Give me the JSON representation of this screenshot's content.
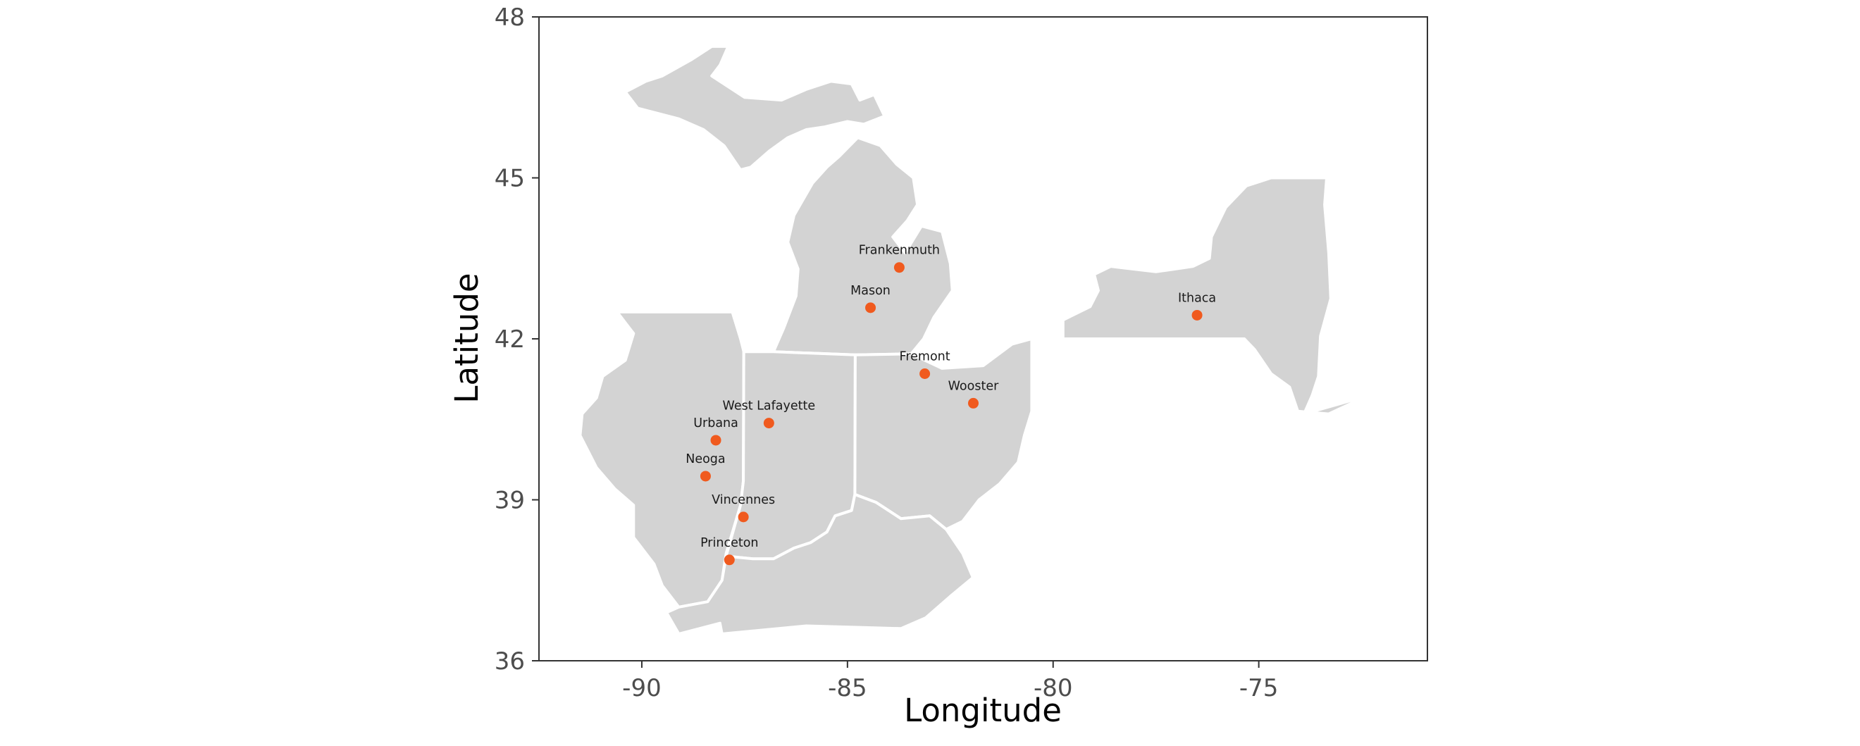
{
  "axes": {
    "x_title": "Longitude",
    "y_title": "Latitude",
    "x_ticks": [
      -90,
      -85,
      -80,
      -75
    ],
    "y_ticks": [
      36,
      39,
      42,
      45,
      48
    ],
    "x_range": [
      -92.5,
      -70.9
    ],
    "y_range": [
      36.0,
      48.0
    ]
  },
  "point_color": "#f05a1e",
  "region_fill": "#d3d3d3",
  "states": [
    {
      "id": "michigan-upper",
      "points": [
        [
          -90.4,
          46.6
        ],
        [
          -89.9,
          46.8
        ],
        [
          -89.5,
          46.9
        ],
        [
          -88.8,
          47.2
        ],
        [
          -88.3,
          47.45
        ],
        [
          -87.9,
          47.45
        ],
        [
          -88.1,
          47.1
        ],
        [
          -88.3,
          46.9
        ],
        [
          -87.5,
          46.5
        ],
        [
          -86.6,
          46.45
        ],
        [
          -86.0,
          46.65
        ],
        [
          -85.4,
          46.8
        ],
        [
          -84.9,
          46.75
        ],
        [
          -84.7,
          46.45
        ],
        [
          -84.35,
          46.55
        ],
        [
          -84.1,
          46.15
        ],
        [
          -84.6,
          46.0
        ],
        [
          -85.0,
          46.05
        ],
        [
          -85.55,
          45.95
        ],
        [
          -86.0,
          45.9
        ],
        [
          -86.45,
          45.75
        ],
        [
          -86.9,
          45.5
        ],
        [
          -87.35,
          45.2
        ],
        [
          -87.6,
          45.15
        ],
        [
          -88.0,
          45.6
        ],
        [
          -88.5,
          45.9
        ],
        [
          -89.1,
          46.1
        ],
        [
          -90.1,
          46.3
        ]
      ]
    },
    {
      "id": "michigan-lower",
      "points": [
        [
          -86.8,
          41.76
        ],
        [
          -86.55,
          42.2
        ],
        [
          -86.25,
          42.8
        ],
        [
          -86.2,
          43.3
        ],
        [
          -86.45,
          43.8
        ],
        [
          -86.3,
          44.3
        ],
        [
          -85.85,
          44.9
        ],
        [
          -85.5,
          45.2
        ],
        [
          -85.2,
          45.4
        ],
        [
          -84.75,
          45.75
        ],
        [
          -84.2,
          45.6
        ],
        [
          -83.8,
          45.25
        ],
        [
          -83.4,
          45.0
        ],
        [
          -83.3,
          44.5
        ],
        [
          -83.55,
          44.2
        ],
        [
          -83.9,
          43.9
        ],
        [
          -83.6,
          43.6
        ],
        [
          -83.2,
          44.1
        ],
        [
          -82.7,
          44.0
        ],
        [
          -82.5,
          43.4
        ],
        [
          -82.45,
          42.9
        ],
        [
          -82.9,
          42.4
        ],
        [
          -83.15,
          42.0
        ],
        [
          -83.45,
          41.72
        ],
        [
          -84.81,
          41.7
        ]
      ]
    },
    {
      "id": "illinois",
      "points": [
        [
          -90.6,
          42.5
        ],
        [
          -87.8,
          42.5
        ],
        [
          -87.6,
          42.0
        ],
        [
          -87.52,
          41.76
        ],
        [
          -87.53,
          39.35
        ],
        [
          -87.6,
          38.9
        ],
        [
          -87.95,
          38.0
        ],
        [
          -88.05,
          37.5
        ],
        [
          -88.4,
          37.1
        ],
        [
          -89.1,
          37.0
        ],
        [
          -89.5,
          37.4
        ],
        [
          -89.7,
          37.8
        ],
        [
          -90.2,
          38.3
        ],
        [
          -90.2,
          38.9
        ],
        [
          -90.65,
          39.2
        ],
        [
          -91.1,
          39.6
        ],
        [
          -91.5,
          40.2
        ],
        [
          -91.45,
          40.6
        ],
        [
          -91.1,
          40.9
        ],
        [
          -90.95,
          41.3
        ],
        [
          -90.4,
          41.6
        ],
        [
          -90.2,
          42.1
        ]
      ]
    },
    {
      "id": "indiana",
      "points": [
        [
          -87.52,
          41.76
        ],
        [
          -86.8,
          41.76
        ],
        [
          -84.81,
          41.7
        ],
        [
          -84.82,
          39.1
        ],
        [
          -84.9,
          38.8
        ],
        [
          -85.3,
          38.7
        ],
        [
          -85.5,
          38.4
        ],
        [
          -85.9,
          38.2
        ],
        [
          -86.3,
          38.1
        ],
        [
          -86.8,
          37.9
        ],
        [
          -87.3,
          37.9
        ],
        [
          -87.95,
          37.95
        ],
        [
          -87.6,
          38.9
        ],
        [
          -87.53,
          39.35
        ]
      ]
    },
    {
      "id": "ohio",
      "points": [
        [
          -84.81,
          41.7
        ],
        [
          -83.45,
          41.72
        ],
        [
          -82.7,
          41.45
        ],
        [
          -81.7,
          41.5
        ],
        [
          -81.0,
          41.9
        ],
        [
          -80.52,
          42.0
        ],
        [
          -80.52,
          40.65
        ],
        [
          -80.7,
          40.2
        ],
        [
          -80.85,
          39.7
        ],
        [
          -81.3,
          39.3
        ],
        [
          -81.8,
          39.0
        ],
        [
          -82.2,
          38.6
        ],
        [
          -82.6,
          38.45
        ],
        [
          -83.0,
          38.7
        ],
        [
          -83.7,
          38.65
        ],
        [
          -84.3,
          38.95
        ],
        [
          -84.82,
          39.1
        ]
      ]
    },
    {
      "id": "kentucky",
      "points": [
        [
          -84.82,
          39.1
        ],
        [
          -84.3,
          38.95
        ],
        [
          -83.7,
          38.65
        ],
        [
          -83.0,
          38.7
        ],
        [
          -82.6,
          38.45
        ],
        [
          -82.2,
          38.0
        ],
        [
          -81.95,
          37.55
        ],
        [
          -82.5,
          37.2
        ],
        [
          -83.1,
          36.8
        ],
        [
          -83.7,
          36.6
        ],
        [
          -86.0,
          36.65
        ],
        [
          -88.05,
          36.5
        ],
        [
          -88.1,
          36.7
        ],
        [
          -89.1,
          36.5
        ],
        [
          -89.4,
          36.9
        ],
        [
          -89.1,
          37.0
        ],
        [
          -88.4,
          37.1
        ],
        [
          -88.05,
          37.5
        ],
        [
          -87.95,
          37.95
        ],
        [
          -87.3,
          37.9
        ],
        [
          -86.8,
          37.9
        ],
        [
          -86.3,
          38.1
        ],
        [
          -85.9,
          38.2
        ],
        [
          -85.5,
          38.4
        ],
        [
          -85.3,
          38.7
        ],
        [
          -84.9,
          38.8
        ]
      ]
    },
    {
      "id": "new-york",
      "points": [
        [
          -79.76,
          42.0
        ],
        [
          -79.76,
          42.35
        ],
        [
          -79.1,
          42.6
        ],
        [
          -78.9,
          42.9
        ],
        [
          -79.0,
          43.2
        ],
        [
          -78.6,
          43.35
        ],
        [
          -77.5,
          43.25
        ],
        [
          -76.6,
          43.35
        ],
        [
          -76.2,
          43.5
        ],
        [
          -76.15,
          43.9
        ],
        [
          -75.8,
          44.45
        ],
        [
          -75.3,
          44.85
        ],
        [
          -74.7,
          45.0
        ],
        [
          -73.35,
          45.0
        ],
        [
          -73.4,
          44.5
        ],
        [
          -73.3,
          43.6
        ],
        [
          -73.25,
          42.75
        ],
        [
          -73.5,
          42.05
        ],
        [
          -73.55,
          41.3
        ],
        [
          -73.7,
          40.95
        ],
        [
          -73.9,
          40.6
        ],
        [
          -72.3,
          40.95
        ],
        [
          -71.9,
          41.1
        ],
        [
          -73.3,
          40.6
        ],
        [
          -74.05,
          40.65
        ],
        [
          -74.25,
          41.1
        ],
        [
          -74.7,
          41.35
        ],
        [
          -75.1,
          41.8
        ],
        [
          -75.35,
          42.0
        ]
      ]
    }
  ],
  "sites": [
    {
      "name": "Frankenmuth",
      "lon": -83.74,
      "lat": 43.33
    },
    {
      "name": "Mason",
      "lon": -84.44,
      "lat": 42.58
    },
    {
      "name": "Ithaca",
      "lon": -76.5,
      "lat": 42.44
    },
    {
      "name": "Fremont",
      "lon": -83.12,
      "lat": 41.35
    },
    {
      "name": "Wooster",
      "lon": -81.94,
      "lat": 40.8
    },
    {
      "name": "West Lafayette",
      "lon": -86.91,
      "lat": 40.43
    },
    {
      "name": "Urbana",
      "lon": -88.2,
      "lat": 40.11
    },
    {
      "name": "Neoga",
      "lon": -88.45,
      "lat": 39.44
    },
    {
      "name": "Vincennes",
      "lon": -87.53,
      "lat": 38.68
    },
    {
      "name": "Princeton",
      "lon": -87.87,
      "lat": 37.88
    }
  ]
}
